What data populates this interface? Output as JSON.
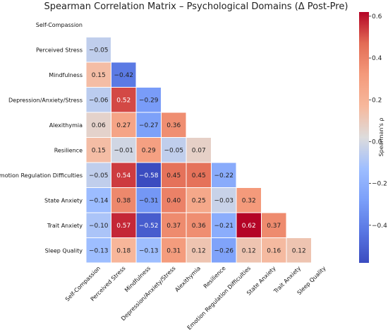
{
  "chart_data": {
    "type": "heatmap",
    "title": "Spearman Correlation Matrix – Psychological Domains (Δ Post-Pre)",
    "labels": [
      "Self-Compassion",
      "Perceived Stress",
      "Mindfulness",
      "Depression/Anxiety/Stress",
      "Alexithymia",
      "Resilience",
      "Emotion Regulation Difficulties",
      "State Anxiety",
      "Trait Anxiety",
      "Sleep Quality"
    ],
    "matrix_lower": [
      [],
      [
        -0.05
      ],
      [
        0.15,
        -0.42
      ],
      [
        -0.06,
        0.52,
        -0.29
      ],
      [
        0.06,
        0.27,
        -0.27,
        0.36
      ],
      [
        0.15,
        -0.01,
        0.29,
        -0.05,
        0.07
      ],
      [
        -0.05,
        0.54,
        -0.58,
        0.45,
        0.45,
        -0.22
      ],
      [
        -0.14,
        0.38,
        -0.31,
        0.4,
        0.25,
        -0.03,
        0.32
      ],
      [
        -0.1,
        0.57,
        -0.52,
        0.37,
        0.36,
        -0.21,
        0.62,
        0.37
      ],
      [
        -0.13,
        0.18,
        -0.13,
        0.31,
        0.12,
        -0.26,
        0.12,
        0.16,
        0.12
      ]
    ],
    "mask": "upper triangle and diagonal",
    "colormap": "coolwarm",
    "vmin": -0.58,
    "vmax": 0.62,
    "colorbar": {
      "label": "Spearman's ρ",
      "ticks": [
        -0.4,
        -0.2,
        0.0,
        0.2,
        0.4,
        0.6
      ],
      "tick_labels": [
        "−0.4",
        "−0.2",
        "0.0",
        "0.2",
        "0.4",
        "0.6"
      ]
    }
  }
}
